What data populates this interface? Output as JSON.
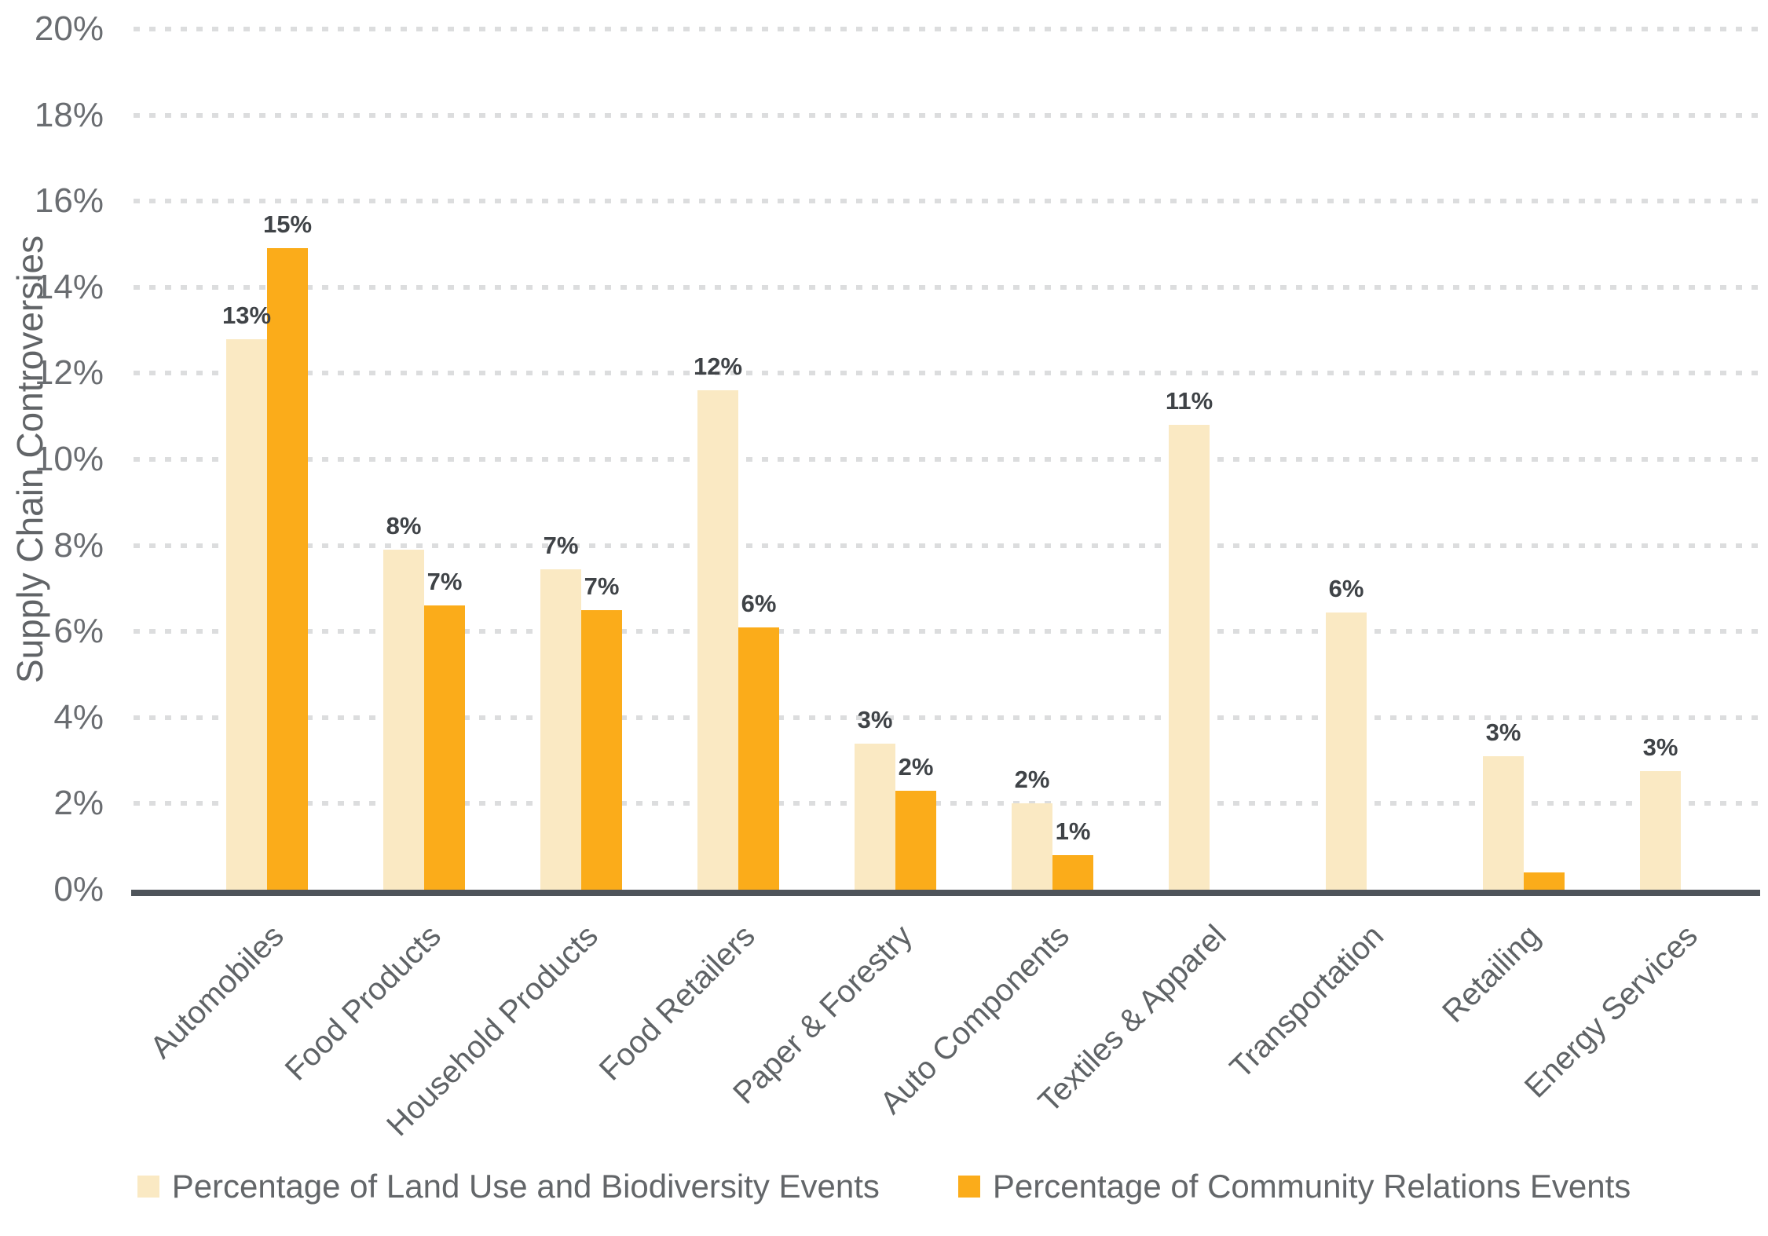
{
  "chart_data": {
    "type": "bar",
    "title": "",
    "xlabel": "",
    "ylabel": "Supply Chain Controversies",
    "ylim": [
      0,
      20
    ],
    "ytick_step": 2,
    "yticks": [
      "0%",
      "2%",
      "4%",
      "6%",
      "8%",
      "10%",
      "12%",
      "14%",
      "16%",
      "18%",
      "20%"
    ],
    "grid": "horizontal-dotted",
    "legend_position": "bottom",
    "categories": [
      "Automobiles",
      "Food Products",
      "Household Products",
      "Food Retailers",
      "Paper & Forestry",
      "Auto Components",
      "Textiles & Apparel",
      "Transportation",
      "Retailing",
      "Energy Services"
    ],
    "series": [
      {
        "name": "Percentage of Land Use and Biodiversity Events",
        "color": "#fae9c3",
        "values": [
          12.8,
          7.9,
          7.45,
          11.6,
          3.4,
          2.0,
          10.8,
          6.45,
          3.1,
          2.75
        ],
        "labels": [
          "13%",
          "8%",
          "7%",
          "12%",
          "3%",
          "2%",
          "11%",
          "6%",
          "3%",
          "3%"
        ]
      },
      {
        "name": "Percentage of Community Relations Events",
        "color": "#fbac1a",
        "values": [
          14.9,
          6.6,
          6.5,
          6.1,
          2.3,
          0.8,
          null,
          null,
          0.4,
          null
        ],
        "labels": [
          "15%",
          "7%",
          "7%",
          "6%",
          "2%",
          "1%",
          "",
          "",
          "",
          ""
        ]
      }
    ],
    "colors": {
      "grid": "#dcddde",
      "axis_line": "#4e545a",
      "tick_text": "#6a6d71",
      "data_label_text": "#3f4347",
      "background": "#ffffff"
    }
  }
}
